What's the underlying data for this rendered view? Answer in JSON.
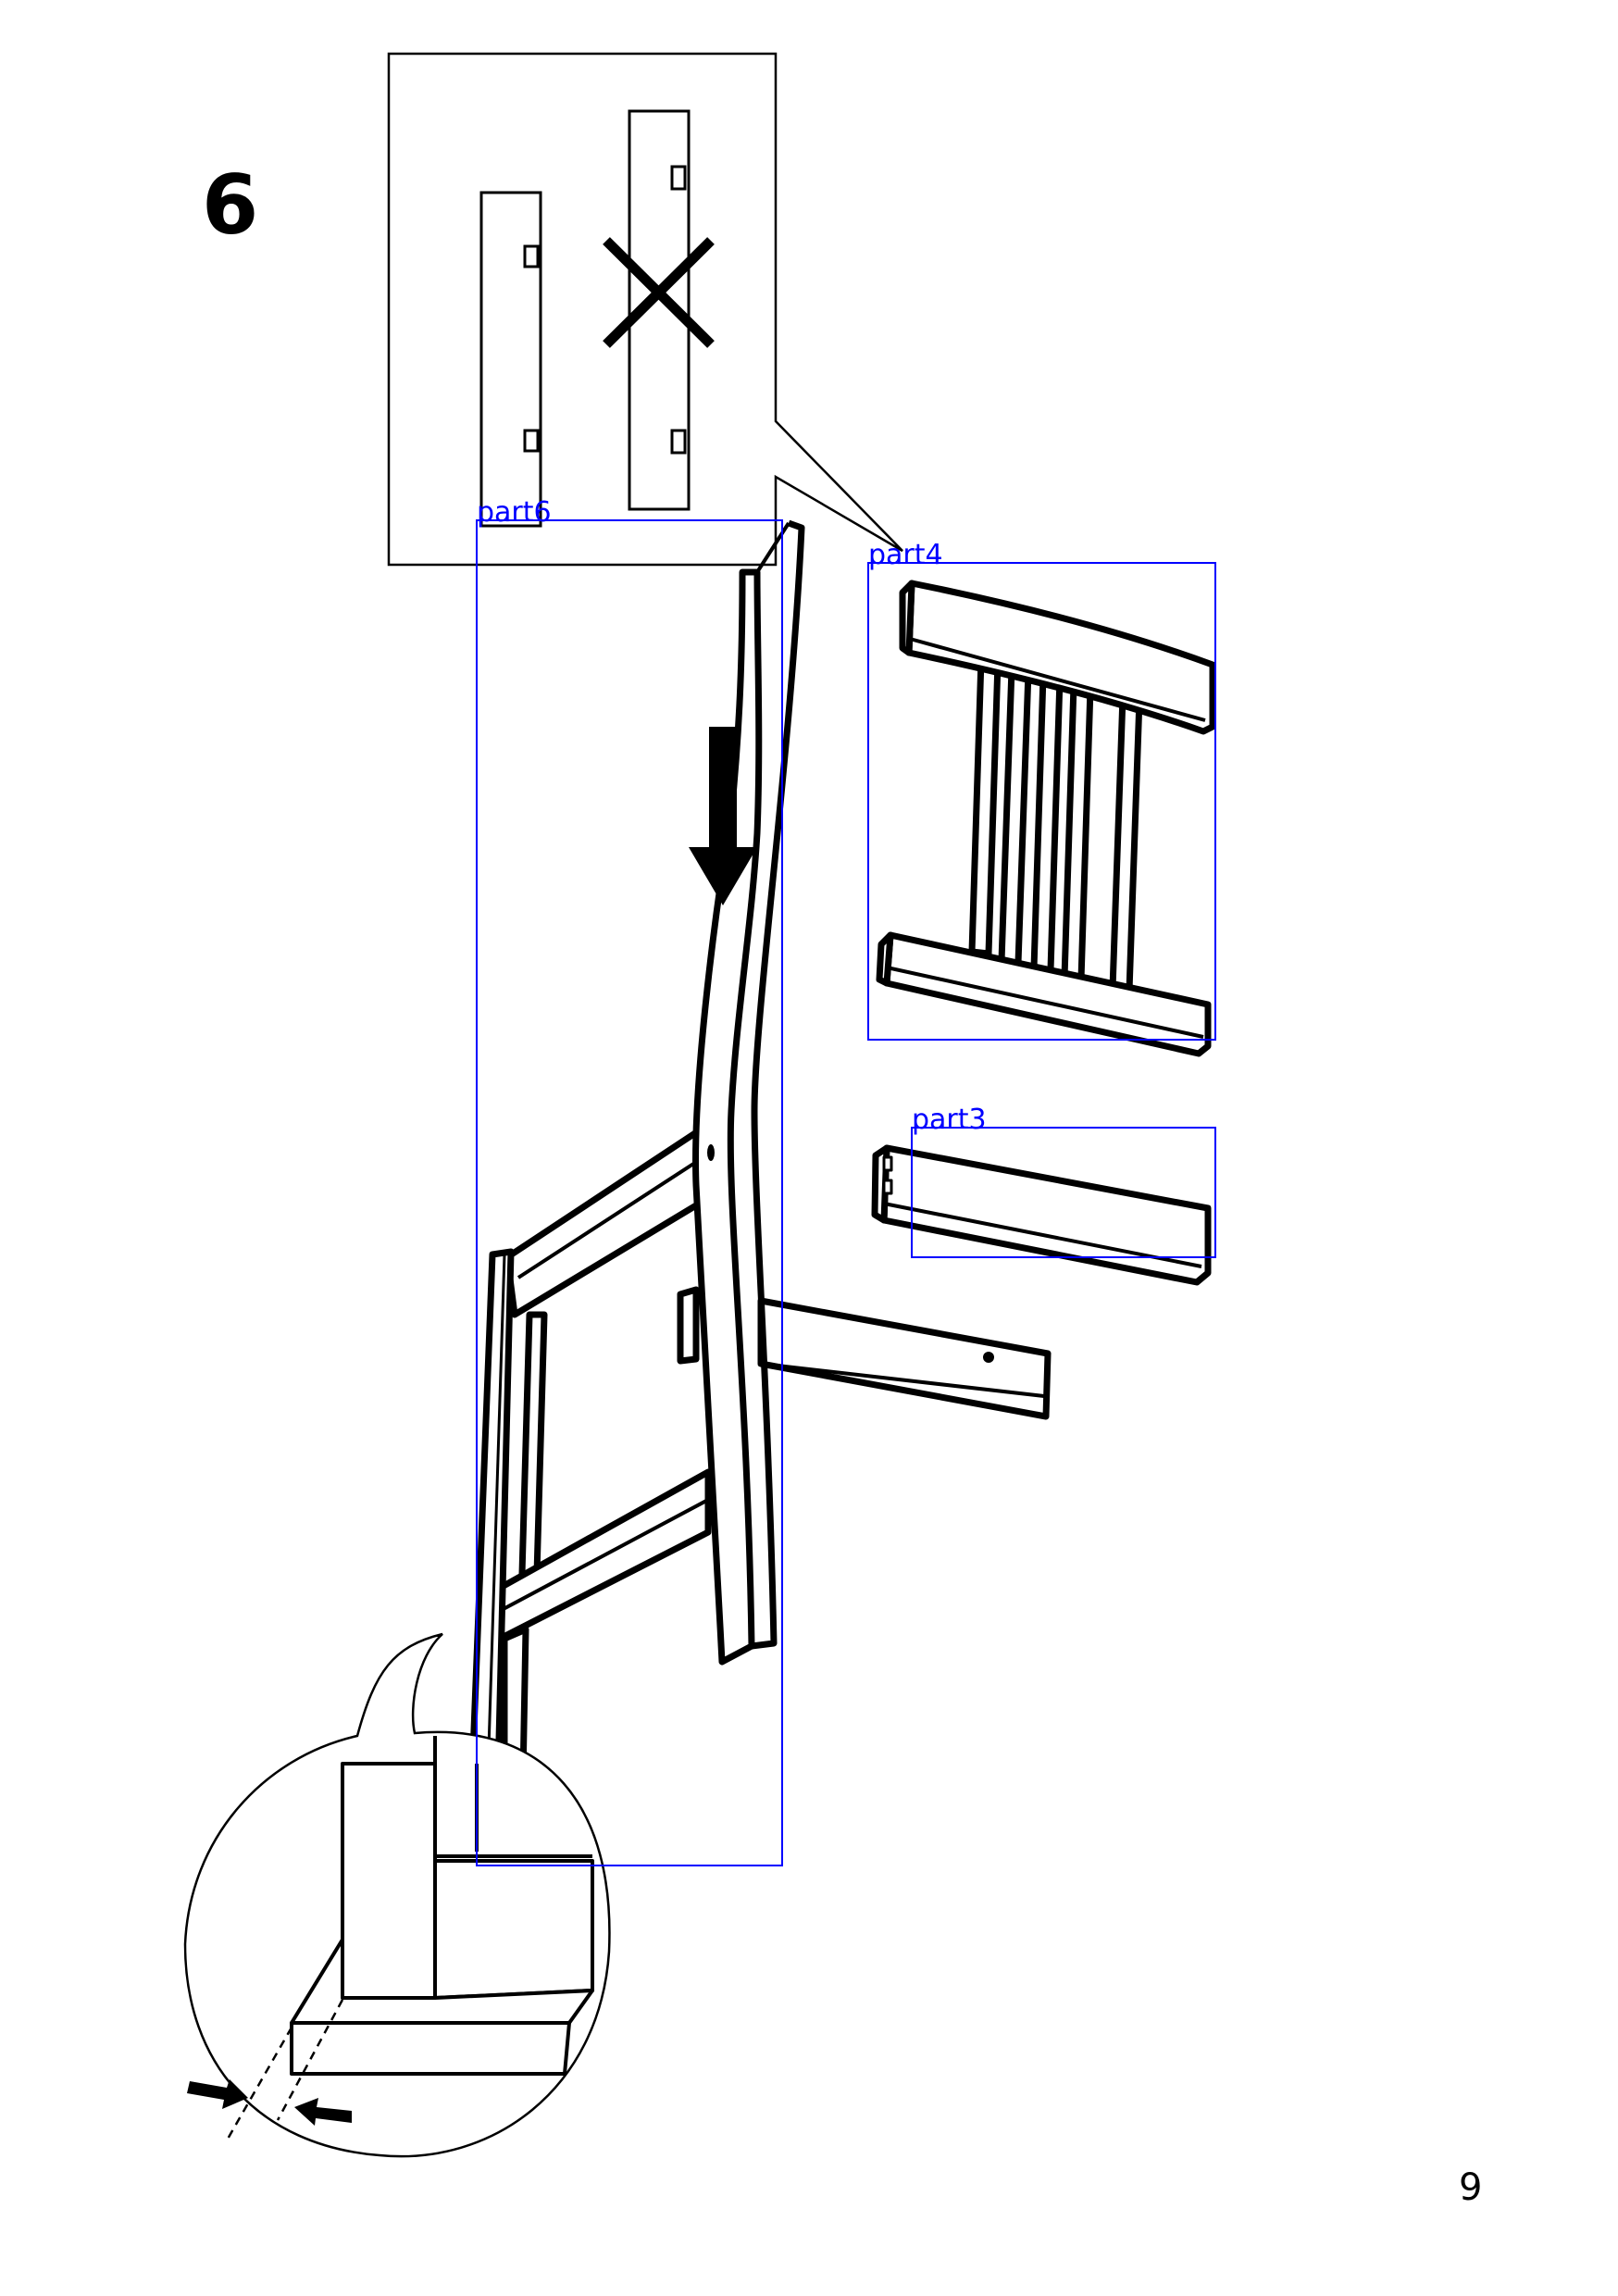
{
  "step": {
    "number": "6"
  },
  "page": {
    "number": "9"
  },
  "annotations": {
    "color": "#0000ff",
    "boxes": [
      {
        "id": "part6",
        "label": "part6"
      },
      {
        "id": "part4",
        "label": "part4"
      },
      {
        "id": "part3",
        "label": "part3"
      }
    ]
  },
  "icons": {
    "wrong_orientation": "cross-mark-icon",
    "direction": "down-arrow-icon",
    "alignment": "inward-arrows-icon"
  },
  "colors": {
    "line": "#000000",
    "background": "#ffffff"
  }
}
